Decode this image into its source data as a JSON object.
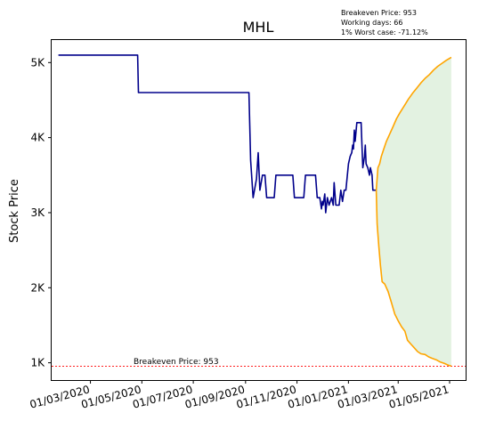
{
  "chart_data": {
    "type": "line",
    "title": "MHL",
    "ylabel": "Stock Price",
    "xlabel": "",
    "info_lines": [
      "Breakeven Price: 953",
      "Working days: 66",
      "1% Worst case: -71.12%"
    ],
    "breakeven": {
      "label": "Breakeven Price: 953",
      "value": 953,
      "color": "#ff0000"
    },
    "x_ticks": [
      {
        "label": "01/03/2020",
        "x": "2020-03-01"
      },
      {
        "label": "01/05/2020",
        "x": "2020-05-01"
      },
      {
        "label": "01/07/2020",
        "x": "2020-07-01"
      },
      {
        "label": "01/09/2020",
        "x": "2020-09-01"
      },
      {
        "label": "01/11/2020",
        "x": "2020-11-01"
      },
      {
        "label": "01/01/2021",
        "x": "2021-01-01"
      },
      {
        "label": "01/03/2021",
        "x": "2021-03-01"
      },
      {
        "label": "01/05/2021",
        "x": "2021-05-01"
      }
    ],
    "y_ticks": [
      {
        "label": "1K",
        "y": 1000
      },
      {
        "label": "2K",
        "y": 2000
      },
      {
        "label": "3K",
        "y": 3000
      },
      {
        "label": "4K",
        "y": 4000
      },
      {
        "label": "5K",
        "y": 5000
      }
    ],
    "xlim": [
      "2020-01-15",
      "2021-05-20"
    ],
    "ylim": [
      770,
      5300
    ],
    "grid": false,
    "series": [
      {
        "role": "history",
        "color": "#00008b",
        "points": [
          [
            "2020-01-23",
            5100
          ],
          [
            "2020-04-26",
            5100
          ],
          [
            "2020-04-27",
            4600
          ],
          [
            "2020-09-05",
            4600
          ],
          [
            "2020-09-07",
            3700
          ],
          [
            "2020-09-10",
            3200
          ],
          [
            "2020-09-14",
            3450
          ],
          [
            "2020-09-16",
            3800
          ],
          [
            "2020-09-18",
            3300
          ],
          [
            "2020-09-21",
            3500
          ],
          [
            "2020-09-24",
            3500
          ],
          [
            "2020-09-26",
            3200
          ],
          [
            "2020-10-05",
            3200
          ],
          [
            "2020-10-07",
            3500
          ],
          [
            "2020-10-27",
            3500
          ],
          [
            "2020-10-29",
            3200
          ],
          [
            "2020-11-09",
            3200
          ],
          [
            "2020-11-11",
            3500
          ],
          [
            "2020-11-23",
            3500
          ],
          [
            "2020-11-25",
            3200
          ],
          [
            "2020-11-28",
            3200
          ],
          [
            "2020-11-30",
            3050
          ],
          [
            "2020-12-01",
            3150
          ],
          [
            "2020-12-02",
            3100
          ],
          [
            "2020-12-04",
            3250
          ],
          [
            "2020-12-05",
            3000
          ],
          [
            "2020-12-07",
            3200
          ],
          [
            "2020-12-09",
            3100
          ],
          [
            "2020-12-12",
            3200
          ],
          [
            "2020-12-14",
            3100
          ],
          [
            "2020-12-15",
            3400
          ],
          [
            "2020-12-17",
            3100
          ],
          [
            "2020-12-21",
            3100
          ],
          [
            "2020-12-23",
            3300
          ],
          [
            "2020-12-25",
            3150
          ],
          [
            "2020-12-27",
            3300
          ],
          [
            "2020-12-29",
            3300
          ],
          [
            "2021-01-01",
            3650
          ],
          [
            "2021-01-03",
            3750
          ],
          [
            "2021-01-05",
            3800
          ],
          [
            "2021-01-06",
            3900
          ],
          [
            "2021-01-07",
            3850
          ],
          [
            "2021-01-08",
            4100
          ],
          [
            "2021-01-09",
            3950
          ],
          [
            "2021-01-11",
            4200
          ],
          [
            "2021-01-16",
            4200
          ],
          [
            "2021-01-18",
            3600
          ],
          [
            "2021-01-20",
            3750
          ],
          [
            "2021-01-21",
            3900
          ],
          [
            "2021-01-22",
            3650
          ],
          [
            "2021-01-24",
            3600
          ],
          [
            "2021-01-26",
            3500
          ],
          [
            "2021-01-27",
            3600
          ],
          [
            "2021-01-29",
            3500
          ],
          [
            "2021-01-30",
            3300
          ],
          [
            "2021-02-03",
            3300
          ]
        ]
      },
      {
        "role": "upper_projection",
        "color": "#ffa500",
        "points": [
          [
            "2021-02-03",
            3300
          ],
          [
            "2021-02-05",
            3600
          ],
          [
            "2021-02-07",
            3650
          ],
          [
            "2021-02-09",
            3750
          ],
          [
            "2021-02-12",
            3850
          ],
          [
            "2021-02-15",
            3950
          ],
          [
            "2021-02-19",
            4050
          ],
          [
            "2021-02-23",
            4150
          ],
          [
            "2021-02-27",
            4250
          ],
          [
            "2021-03-03",
            4330
          ],
          [
            "2021-03-08",
            4420
          ],
          [
            "2021-03-13",
            4510
          ],
          [
            "2021-03-18",
            4590
          ],
          [
            "2021-03-23",
            4660
          ],
          [
            "2021-03-28",
            4730
          ],
          [
            "2021-04-02",
            4790
          ],
          [
            "2021-04-07",
            4840
          ],
          [
            "2021-04-12",
            4900
          ],
          [
            "2021-04-17",
            4950
          ],
          [
            "2021-04-22",
            4990
          ],
          [
            "2021-04-27",
            5030
          ],
          [
            "2021-05-03",
            5070
          ]
        ]
      },
      {
        "role": "lower_projection",
        "color": "#ffa500",
        "points": [
          [
            "2021-02-03",
            3300
          ],
          [
            "2021-02-04",
            2850
          ],
          [
            "2021-02-06",
            2550
          ],
          [
            "2021-02-08",
            2300
          ],
          [
            "2021-02-10",
            2080
          ],
          [
            "2021-02-13",
            2050
          ],
          [
            "2021-02-17",
            1950
          ],
          [
            "2021-02-21",
            1800
          ],
          [
            "2021-02-25",
            1650
          ],
          [
            "2021-03-01",
            1560
          ],
          [
            "2021-03-05",
            1480
          ],
          [
            "2021-03-09",
            1420
          ],
          [
            "2021-03-12",
            1300
          ],
          [
            "2021-03-16",
            1250
          ],
          [
            "2021-03-20",
            1200
          ],
          [
            "2021-03-24",
            1150
          ],
          [
            "2021-03-28",
            1120
          ],
          [
            "2021-04-02",
            1110
          ],
          [
            "2021-04-06",
            1080
          ],
          [
            "2021-04-10",
            1060
          ],
          [
            "2021-04-15",
            1040
          ],
          [
            "2021-04-20",
            1010
          ],
          [
            "2021-04-25",
            990
          ],
          [
            "2021-04-29",
            970
          ],
          [
            "2021-05-03",
            955
          ]
        ]
      }
    ],
    "band_fill": "#e3f2e1",
    "colors": {
      "history": "#00008b",
      "projection": "#ffa500",
      "breakeven": "#ff0000",
      "band": "#e3f2e1"
    }
  }
}
